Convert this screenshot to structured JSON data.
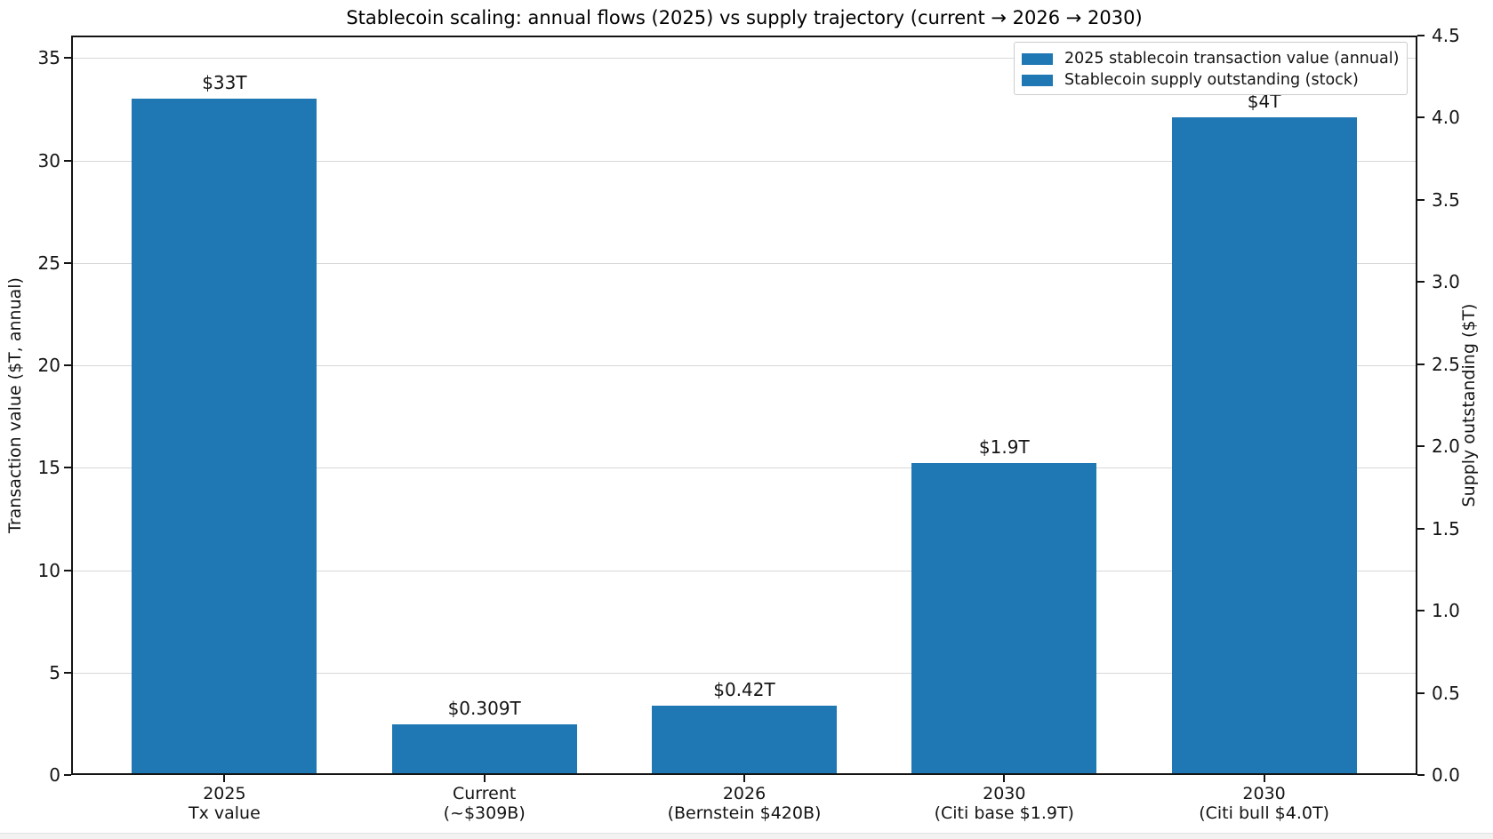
{
  "chart_data": {
    "type": "bar",
    "title": "Stablecoin scaling: annual flows (2025) vs supply trajectory (current → 2026 → 2030)",
    "categories": [
      [
        "2025",
        "Tx value"
      ],
      [
        "Current",
        "(~$309B)"
      ],
      [
        "2026",
        "(Bernstein $420B)"
      ],
      [
        "2030",
        "(Citi base $1.9T)"
      ],
      [
        "2030",
        "(Citi bull $4.0T)"
      ]
    ],
    "series": [
      {
        "name": "2025 stablecoin transaction value (annual)",
        "axis": "left",
        "values": [
          33,
          null,
          null,
          null,
          null
        ]
      },
      {
        "name": "Stablecoin supply outstanding (stock)",
        "axis": "right",
        "values": [
          null,
          0.309,
          0.42,
          1.9,
          4.0
        ]
      }
    ],
    "bar_labels": [
      "$33T",
      "$0.309T",
      "$0.42T",
      "$1.9T",
      "$4T"
    ],
    "bar_color": "#1f77b4",
    "grid": "horizontal",
    "legend_position": "upper right",
    "left_axis": {
      "label": "Transaction value ($T, annual)",
      "ticks": [
        0,
        5,
        10,
        15,
        20,
        25,
        30,
        35
      ],
      "max": 36.1
    },
    "right_axis": {
      "label": "Supply outstanding ($T)",
      "ticks": [
        "0.0",
        "0.5",
        "1.0",
        "1.5",
        "2.0",
        "2.5",
        "3.0",
        "3.5",
        "4.0",
        "4.5"
      ],
      "max": 4.5
    }
  }
}
